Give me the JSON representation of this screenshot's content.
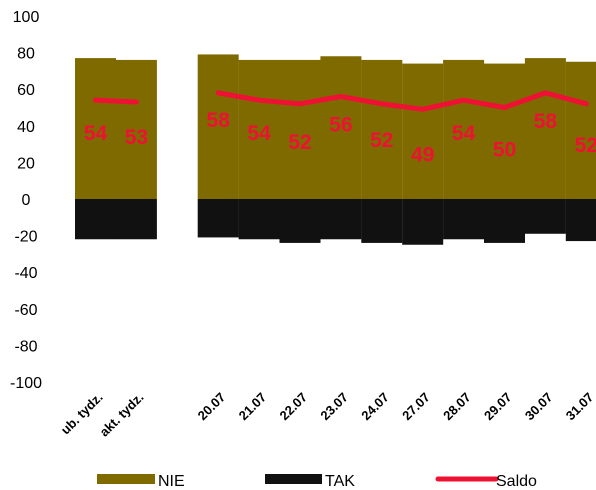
{
  "chart_data": {
    "type": "bar",
    "stacked": true,
    "categories": [
      "ub. tydz.",
      "akt. tydz.",
      "",
      "20.07",
      "21.07",
      "22.07",
      "23.07",
      "24.07",
      "27.07",
      "28.07",
      "29.07",
      "30.07",
      "31.07"
    ],
    "series": [
      {
        "name": "NIE",
        "type": "bar",
        "color": "#7f6a00",
        "values": [
          77,
          76,
          null,
          79,
          76,
          76,
          78,
          76,
          74,
          76,
          74,
          77,
          75
        ]
      },
      {
        "name": "TAK",
        "type": "bar",
        "color": "#111111",
        "values": [
          -22,
          -22,
          null,
          -21,
          -22,
          -24,
          -22,
          -24,
          -25,
          -22,
          -24,
          -19,
          -23
        ]
      },
      {
        "name": "Saldo",
        "type": "line",
        "color": "#ee1133",
        "values": [
          54,
          53,
          null,
          58,
          54,
          52,
          56,
          52,
          49,
          54,
          50,
          58,
          52
        ]
      }
    ],
    "data_labels": [
      "54",
      "53",
      "",
      "58",
      "54",
      "52",
      "56",
      "52",
      "49",
      "54",
      "50",
      "58",
      "52"
    ],
    "y_ticks": [
      "100",
      "80",
      "60",
      "40",
      "20",
      "0",
      "-20",
      "-40",
      "-60",
      "-80",
      "-100"
    ],
    "ylim": [
      -100,
      100
    ],
    "grid": false,
    "legend_position": "bottom"
  }
}
